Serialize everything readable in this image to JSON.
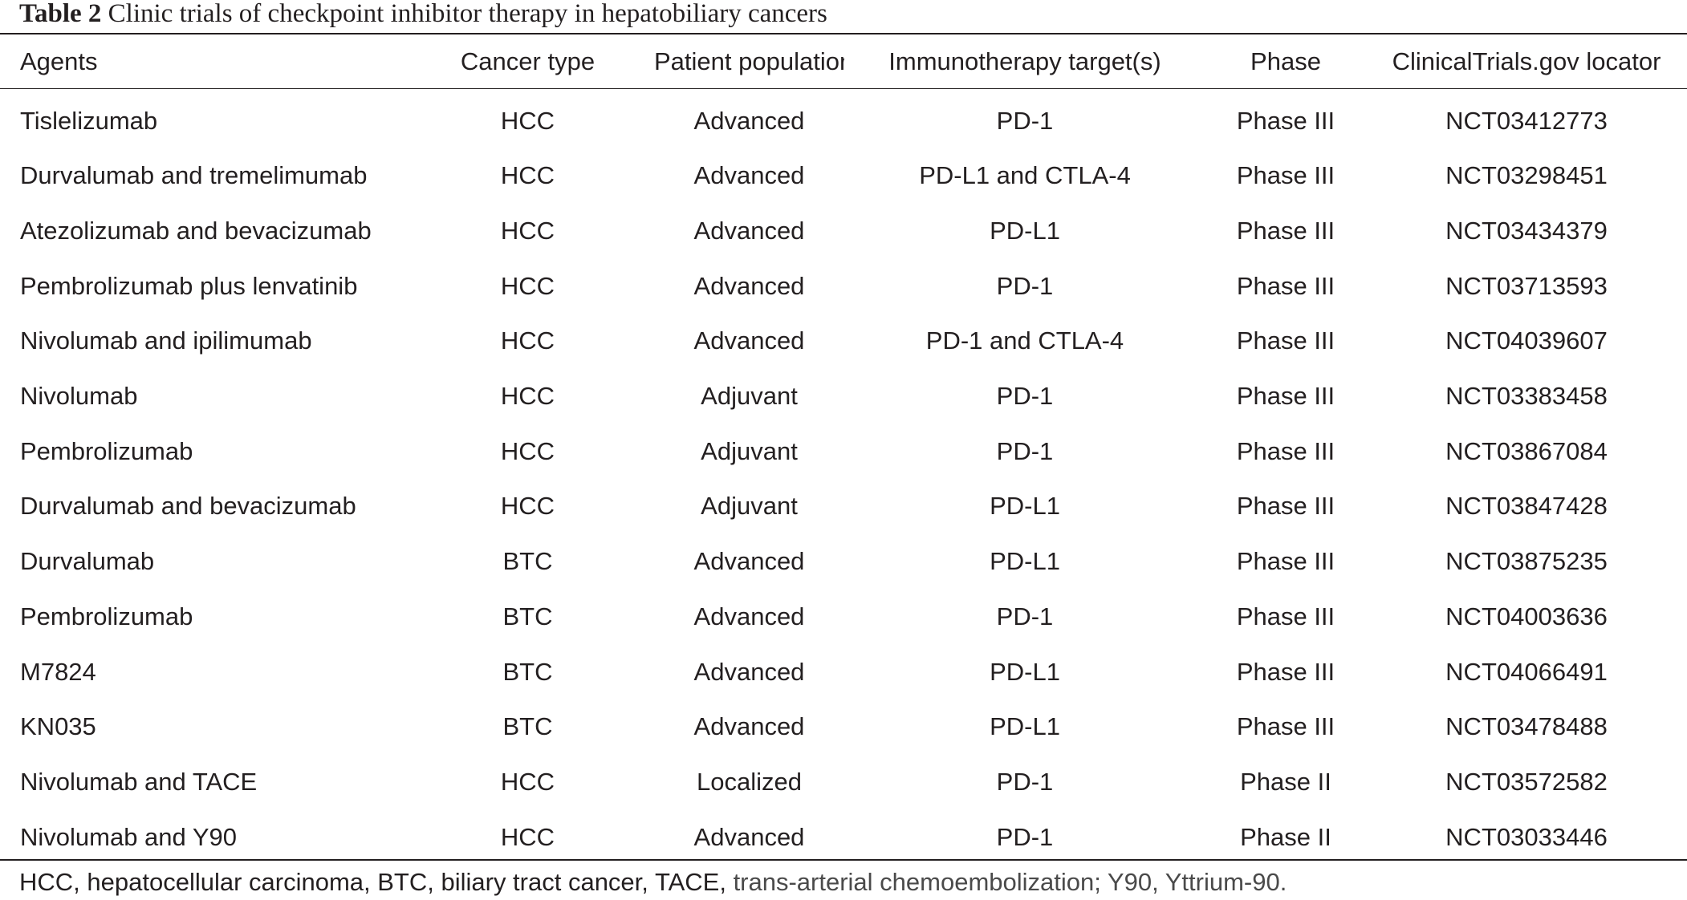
{
  "caption": {
    "label": "Table 2",
    "text": "Clinic trials of checkpoint inhibitor therapy in hepatobiliary cancers"
  },
  "table": {
    "headers": [
      "Agents",
      "Cancer type",
      "Patient population",
      "Immunotherapy target(s)",
      "Phase",
      "ClinicalTrials.gov locator"
    ],
    "rows": [
      [
        "Tislelizumab",
        "HCC",
        "Advanced",
        "PD-1",
        "Phase III",
        "NCT03412773"
      ],
      [
        "Durvalumab and tremelimumab",
        "HCC",
        "Advanced",
        "PD-L1 and CTLA-4",
        "Phase III",
        "NCT03298451"
      ],
      [
        "Atezolizumab and bevacizumab",
        "HCC",
        "Advanced",
        "PD-L1",
        "Phase III",
        "NCT03434379"
      ],
      [
        "Pembrolizumab plus lenvatinib",
        "HCC",
        "Advanced",
        "PD-1",
        "Phase III",
        "NCT03713593"
      ],
      [
        "Nivolumab and ipilimumab",
        "HCC",
        "Advanced",
        "PD-1 and CTLA-4",
        "Phase III",
        "NCT04039607"
      ],
      [
        "Nivolumab",
        "HCC",
        "Adjuvant",
        "PD-1",
        "Phase III",
        "NCT03383458"
      ],
      [
        "Pembrolizumab",
        "HCC",
        "Adjuvant",
        "PD-1",
        "Phase III",
        "NCT03867084"
      ],
      [
        "Durvalumab and bevacizumab",
        "HCC",
        "Adjuvant",
        "PD-L1",
        "Phase III",
        "NCT03847428"
      ],
      [
        "Durvalumab",
        "BTC",
        "Advanced",
        "PD-L1",
        "Phase III",
        "NCT03875235"
      ],
      [
        "Pembrolizumab",
        "BTC",
        "Advanced",
        "PD-1",
        "Phase III",
        "NCT04003636"
      ],
      [
        "M7824",
        "BTC",
        "Advanced",
        "PD-L1",
        "Phase III",
        "NCT04066491"
      ],
      [
        "KN035",
        "BTC",
        "Advanced",
        "PD-L1",
        "Phase III",
        "NCT03478488"
      ],
      [
        "Nivolumab and TACE",
        "HCC",
        "Localized",
        "PD-1",
        "Phase II",
        "NCT03572582"
      ],
      [
        "Nivolumab and Y90",
        "HCC",
        "Advanced",
        "PD-1",
        "Phase II",
        "NCT03033446"
      ]
    ]
  },
  "footnote": {
    "part1": "HCC, hepatocellular carcinoma, BTC, biliary tract cancer, TACE, ",
    "part2": "trans-arterial chemoembolization; Y90, Yttrium-90."
  }
}
